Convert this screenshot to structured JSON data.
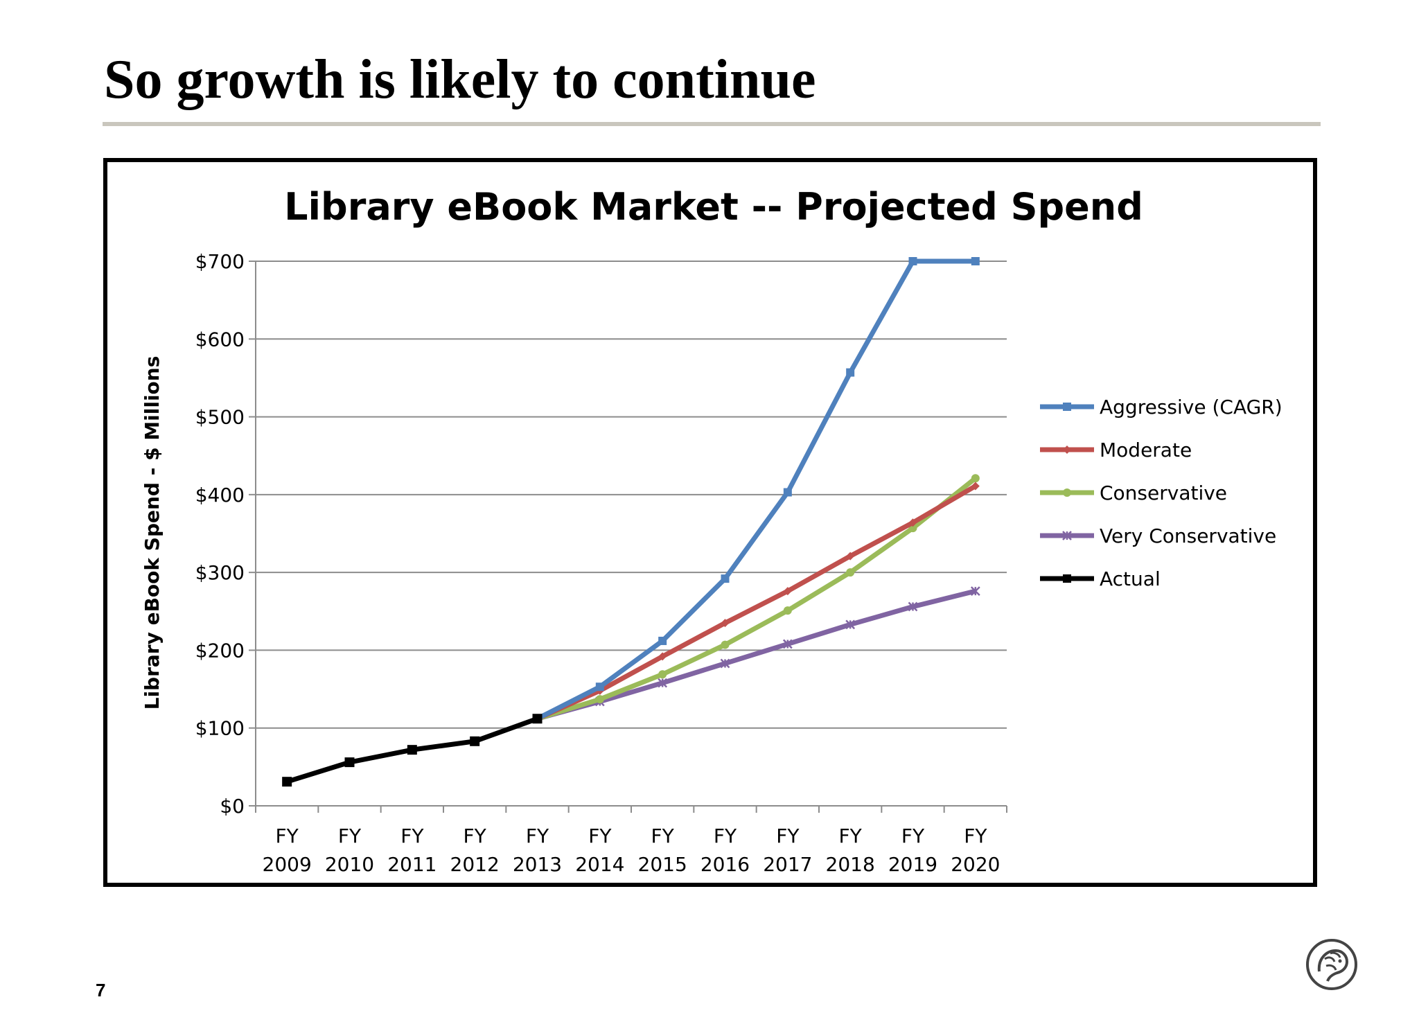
{
  "slide": {
    "title": "So growth is likely to continue",
    "page_number": "7"
  },
  "logo": {
    "icon": "library-lion-logo-icon"
  },
  "chart_data": {
    "type": "line",
    "title": "Library eBook Market -- Projected Spend",
    "xlabel": "",
    "ylabel": "Library eBook Spend - $ Millions",
    "ylim": [
      0,
      700
    ],
    "y_ticks": [
      0,
      100,
      200,
      300,
      400,
      500,
      600,
      700
    ],
    "y_tick_labels": [
      "$0",
      "$100",
      "$200",
      "$300",
      "$400",
      "$500",
      "$600",
      "$700"
    ],
    "categories": [
      [
        "FY",
        "2009"
      ],
      [
        "FY",
        "2010"
      ],
      [
        "FY",
        "2011"
      ],
      [
        "FY",
        "2012"
      ],
      [
        "FY",
        "2013"
      ],
      [
        "FY",
        "2014"
      ],
      [
        "FY",
        "2015"
      ],
      [
        "FY",
        "2016"
      ],
      [
        "FY",
        "2017"
      ],
      [
        "FY",
        "2018"
      ],
      [
        "FY",
        "2019"
      ],
      [
        "FY",
        "2020"
      ]
    ],
    "grid": "horizontal",
    "legend_position": "right",
    "series": [
      {
        "name": "Aggressive (CAGR)",
        "color": "#4f81bd",
        "marker": "square",
        "values": [
          null,
          null,
          null,
          null,
          112,
          153,
          212,
          292,
          403,
          557,
          700,
          700
        ]
      },
      {
        "name": "Moderate",
        "color": "#c0504d",
        "marker": "diamond",
        "values": [
          null,
          null,
          null,
          null,
          112,
          148,
          192,
          235,
          276,
          321,
          364,
          411
        ]
      },
      {
        "name": "Conservative",
        "color": "#9bbb59",
        "marker": "circle",
        "values": [
          null,
          null,
          null,
          null,
          112,
          137,
          169,
          207,
          251,
          300,
          357,
          421
        ]
      },
      {
        "name": "Very Conservative",
        "color": "#8064a2",
        "marker": "x",
        "values": [
          null,
          null,
          null,
          null,
          112,
          134,
          158,
          183,
          208,
          233,
          256,
          276
        ]
      },
      {
        "name": "Actual",
        "color": "#000000",
        "marker": "square",
        "values": [
          31,
          56,
          72,
          83,
          112,
          null,
          null,
          null,
          null,
          null,
          null,
          null
        ]
      }
    ]
  }
}
